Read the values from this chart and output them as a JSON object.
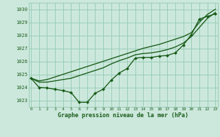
{
  "bg_color": "#cce8dc",
  "grid_color": "#99ccb8",
  "line_color": "#1a5c1a",
  "marker_color": "#1a5c1a",
  "xlabel": "Graphe pression niveau de la mer (hPa)",
  "xlabel_color": "#1a5c1a",
  "ylim": [
    1022.5,
    1030.5
  ],
  "xlim": [
    -0.3,
    23.3
  ],
  "yticks": [
    1023,
    1024,
    1025,
    1026,
    1027,
    1028,
    1029,
    1030
  ],
  "xticks": [
    0,
    1,
    2,
    3,
    4,
    5,
    6,
    7,
    8,
    9,
    10,
    11,
    12,
    13,
    14,
    15,
    16,
    17,
    18,
    19,
    20,
    21,
    22,
    23
  ],
  "series": [
    {
      "x": [
        0,
        1,
        2,
        3,
        4,
        5,
        6,
        7,
        8,
        9,
        10,
        11,
        12,
        13,
        14,
        15,
        16,
        17,
        18,
        19,
        20,
        21,
        22,
        23
      ],
      "y": [
        1024.7,
        1024.5,
        1024.6,
        1024.8,
        1025.0,
        1025.2,
        1025.4,
        1025.6,
        1025.8,
        1026.0,
        1026.2,
        1026.4,
        1026.6,
        1026.8,
        1027.0,
        1027.15,
        1027.3,
        1027.5,
        1027.7,
        1027.9,
        1028.2,
        1029.0,
        1029.6,
        1030.0
      ],
      "marker": false,
      "linewidth": 1.0
    },
    {
      "x": [
        0,
        1,
        2,
        3,
        4,
        5,
        6,
        7,
        8,
        9,
        10,
        11,
        12,
        13,
        14,
        15,
        16,
        17,
        18,
        19,
        20,
        21,
        22,
        23
      ],
      "y": [
        1024.7,
        1024.4,
        1024.4,
        1024.5,
        1024.6,
        1024.7,
        1024.9,
        1025.1,
        1025.3,
        1025.5,
        1025.8,
        1026.05,
        1026.25,
        1026.5,
        1026.6,
        1026.65,
        1026.75,
        1026.9,
        1027.1,
        1027.4,
        1027.9,
        1028.6,
        1029.3,
        1029.75
      ],
      "marker": false,
      "linewidth": 1.0
    },
    {
      "x": [
        0,
        1,
        2,
        3,
        4,
        5,
        6,
        7,
        8,
        9,
        10,
        11,
        12,
        13,
        14,
        15,
        16,
        17,
        18,
        19,
        20,
        21,
        22,
        23
      ],
      "y": [
        1024.7,
        1024.0,
        1023.95,
        1023.85,
        1023.75,
        1023.6,
        1022.85,
        1022.85,
        1023.55,
        1023.85,
        1024.55,
        1025.1,
        1025.45,
        1026.25,
        1026.3,
        1026.3,
        1026.4,
        1026.45,
        1026.65,
        1027.25,
        1028.05,
        1029.25,
        1029.45,
        1029.65
      ],
      "marker": true,
      "linewidth": 1.0
    }
  ],
  "figwidth": 3.2,
  "figheight": 2.0,
  "dpi": 100
}
